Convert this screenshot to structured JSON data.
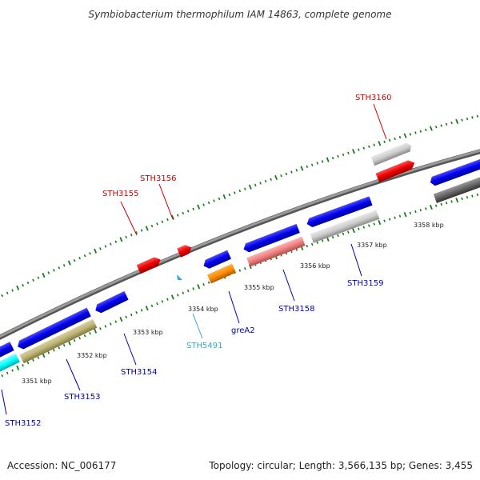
{
  "title": "Symbiobacterium thermophilum IAM 14863, complete genome",
  "footer": {
    "accession": "Accession: NC_006177",
    "topology": "Topology: circular; Length: 3,566,135 bp; Genes: 3,455"
  },
  "colors": {
    "backbone": "#888888",
    "tick": "#1a7a1a",
    "forward_label": "#cc0000",
    "reverse_label": "#0000aa",
    "rna_label": "#33aacc"
  },
  "kbp_labels": [
    "3351 kbp",
    "3352 kbp",
    "3353 kbp",
    "3354 kbp",
    "3355 kbp",
    "3356 kbp",
    "3357 kbp",
    "3358 kbp"
  ],
  "gene_labels": {
    "sth3155": "STH3155",
    "sth3156": "STH3156",
    "sth3160": "STH3160",
    "sth3152": "STH3152",
    "sth3153": "STH3153",
    "sth3154": "STH3154",
    "sth5491": "STH5491",
    "grea2": "greA2",
    "sth3158": "STH3158",
    "sth3159": "STH3159"
  }
}
